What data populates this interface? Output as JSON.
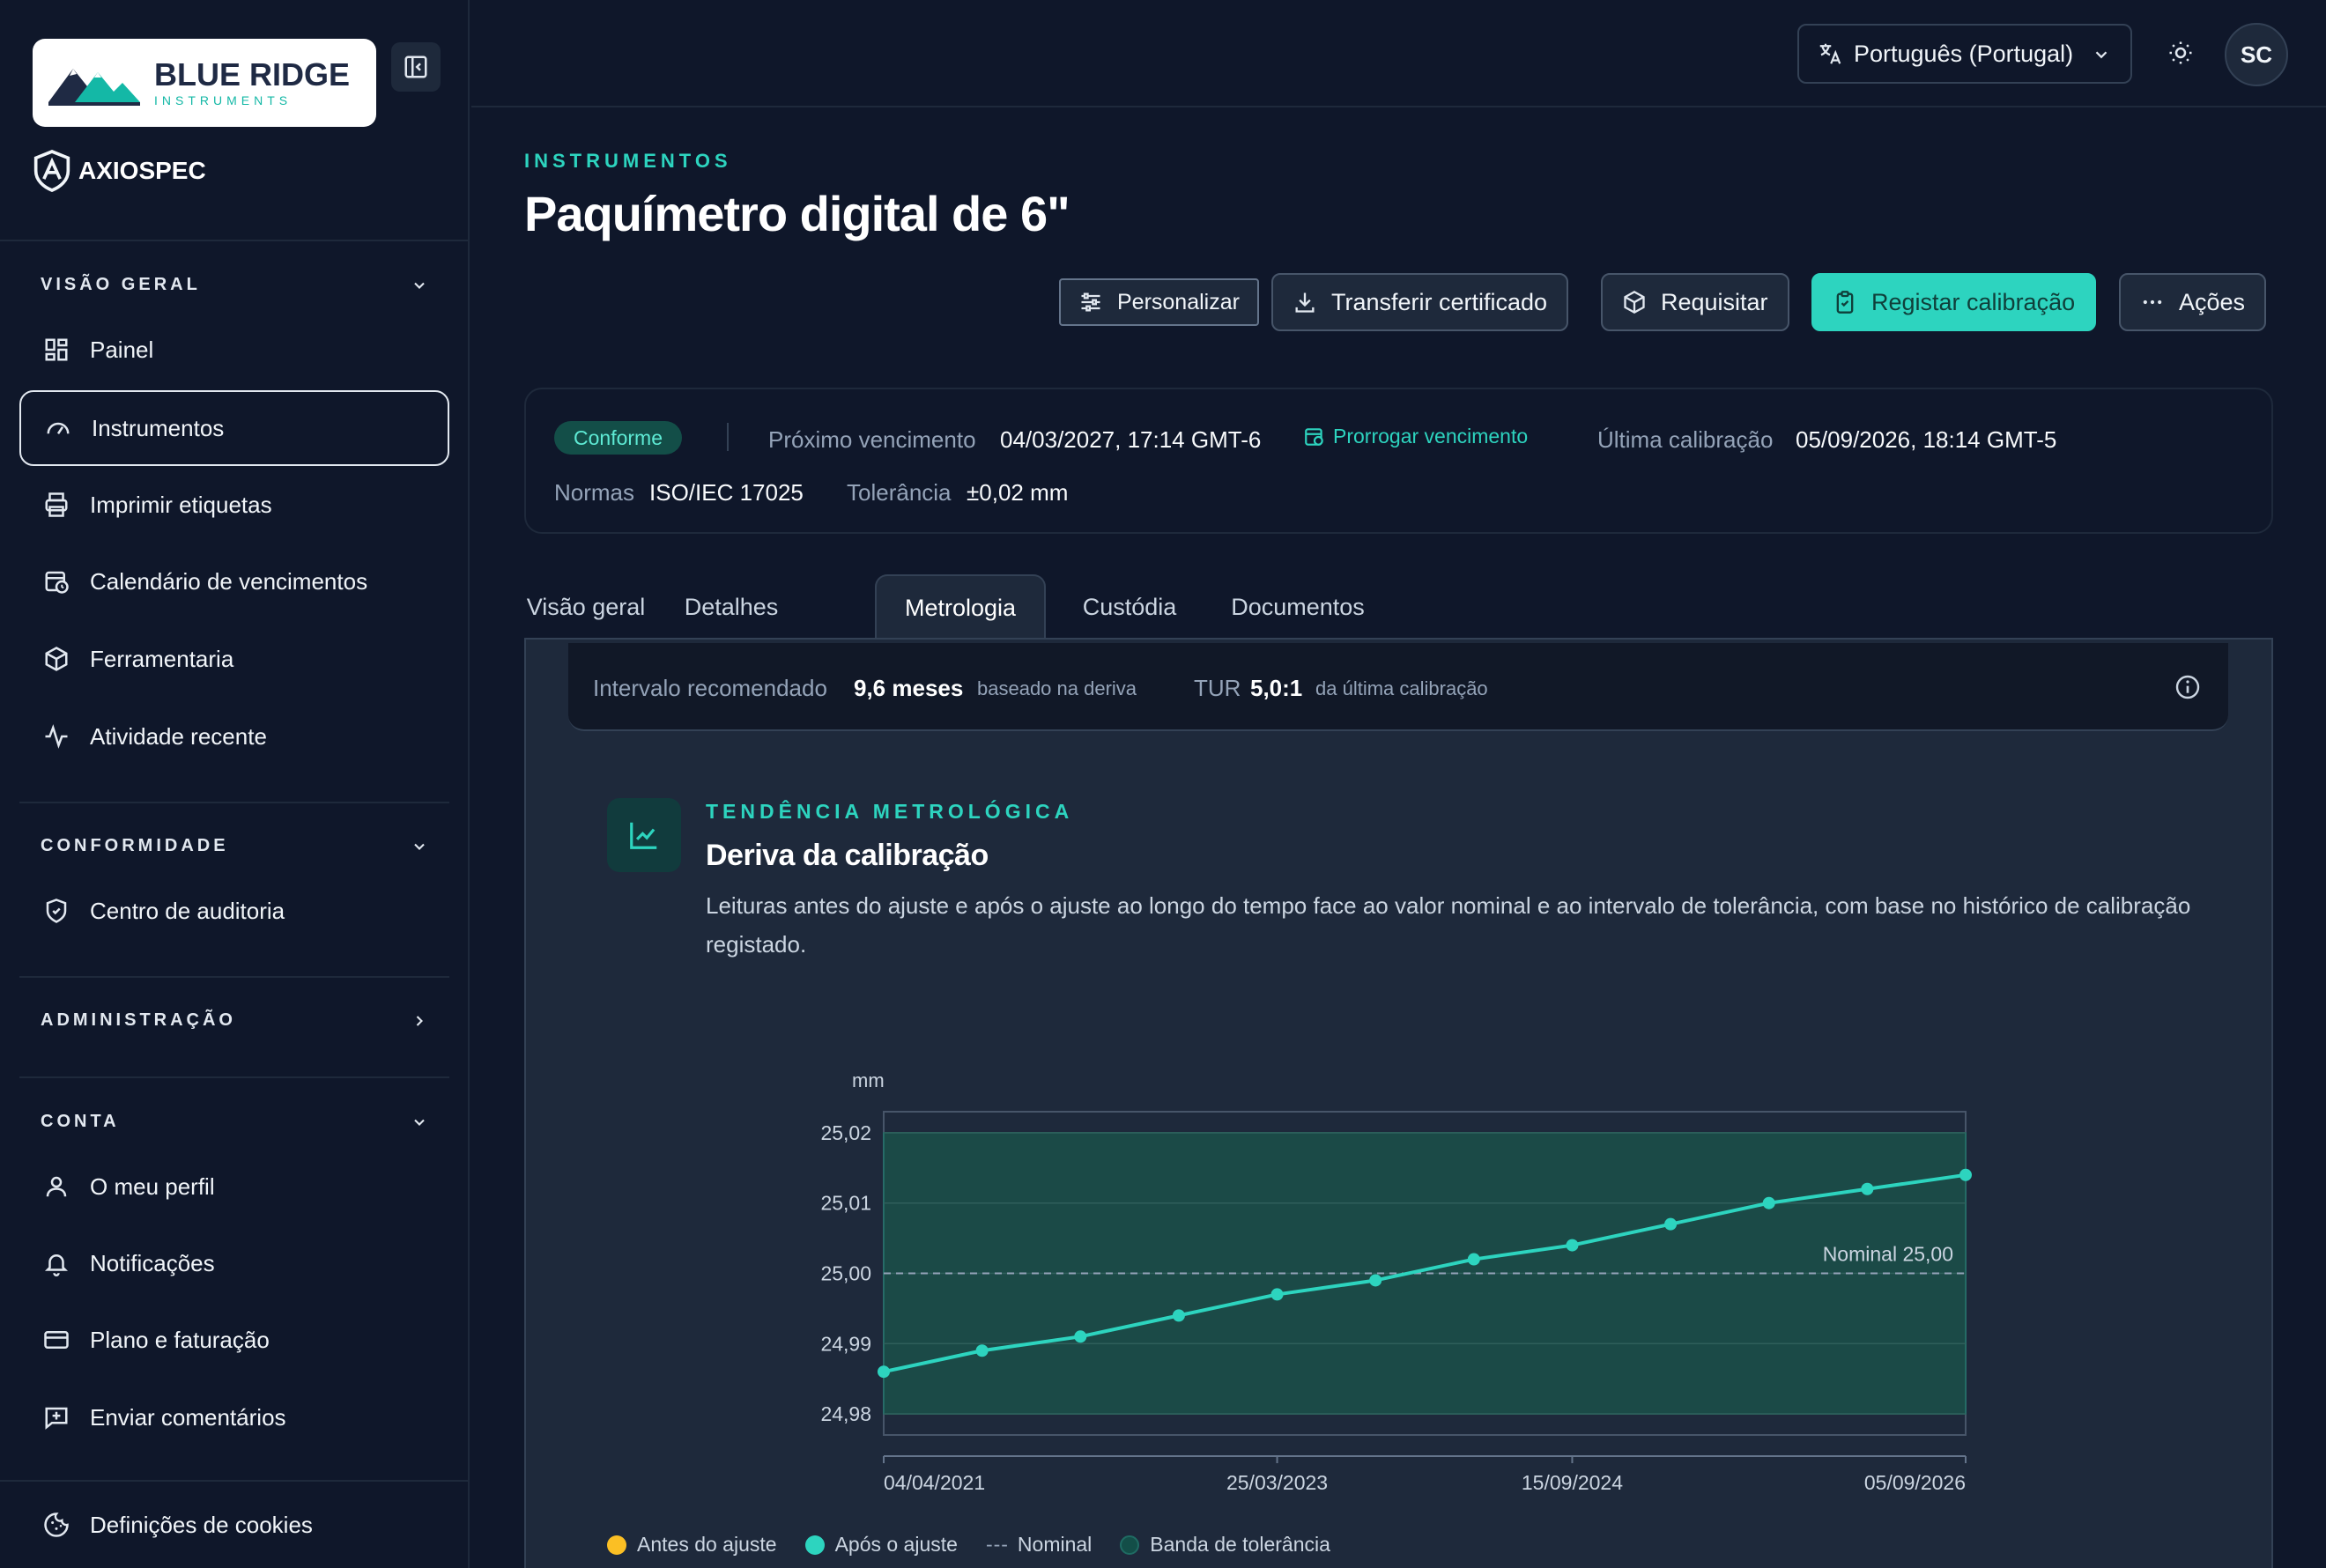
{
  "brand": {
    "name": "BLUE RIDGE",
    "sub": "INSTRUMENTS",
    "product": "AXIOSPEC"
  },
  "sidebar": {
    "sections": [
      {
        "title": "VISÃO GERAL",
        "items": [
          "Painel",
          "Instrumentos",
          "Imprimir etiquetas",
          "Calendário de vencimentos",
          "Ferramentaria",
          "Atividade recente"
        ]
      },
      {
        "title": "CONFORMIDADE",
        "items": [
          "Centro de auditoria"
        ]
      },
      {
        "title": "ADMINISTRAÇÃO",
        "items": []
      },
      {
        "title": "CONTA",
        "items": [
          "O meu perfil",
          "Notificações",
          "Plano e faturação",
          "Enviar comentários"
        ]
      }
    ],
    "footer_item": "Definições de cookies",
    "active_item": "Instrumentos"
  },
  "topbar": {
    "language": "Português (Portugal)",
    "avatar_initials": "SC"
  },
  "page": {
    "breadcrumb": "INSTRUMENTOS",
    "title": "Paquímetro digital de 6\"",
    "actions": {
      "customize": "Personalizar",
      "download": "Transferir certificado",
      "request": "Requisitar",
      "calibrate": "Registar calibração",
      "more": "Ações"
    }
  },
  "summary": {
    "status": "Conforme",
    "next_due_label": "Próximo vencimento",
    "next_due": "04/03/2027, 17:14 GMT-6",
    "extend_link": "Prorrogar vencimento",
    "last_cal_label": "Última calibração",
    "last_cal": "05/09/2026, 18:14 GMT-5",
    "standards_label": "Normas",
    "standards": "ISO/IEC 17025",
    "tolerance_label": "Tolerância",
    "tolerance": "±0,02 mm"
  },
  "tabs": [
    "Visão geral",
    "Detalhes",
    "Metrologia",
    "Custódia",
    "Documentos"
  ],
  "active_tab": "Metrologia",
  "interval": {
    "label": "Intervalo recomendado",
    "value": "9,6 meses",
    "note": "baseado na deriva",
    "tur_label": "TUR",
    "tur_value": "5,0:1",
    "tur_note": "da última calibração"
  },
  "trend": {
    "eyebrow": "TENDÊNCIA METROLÓGICA",
    "title": "Deriva da calibração",
    "description": "Leituras antes do ajuste e após o ajuste ao longo do tempo face ao valor nominal e ao intervalo de tolerância, com base no histórico de calibração registado."
  },
  "chart_data": {
    "type": "line",
    "ylabel": "mm",
    "ylim": [
      24.977,
      25.023
    ],
    "y_ticks": [
      "25,02",
      "25,01",
      "25,00",
      "24,99",
      "24,98"
    ],
    "y_tick_values": [
      25.02,
      25.01,
      25.0,
      24.99,
      24.98
    ],
    "x_tick_labels": [
      "04/04/2021",
      "25/03/2023",
      "15/09/2024",
      "05/09/2026"
    ],
    "x_tick_index": [
      0,
      4,
      7,
      11
    ],
    "nominal": 25.0,
    "nominal_label": "Nominal 25,00",
    "tolerance_band": [
      24.98,
      25.02
    ],
    "series": [
      {
        "name": "Após o ajuste",
        "color": "#2dd4bf",
        "values": [
          24.986,
          24.989,
          24.991,
          24.994,
          24.997,
          24.999,
          25.002,
          25.004,
          25.007,
          25.01,
          25.012,
          25.014
        ]
      }
    ],
    "legend": [
      "Antes do ajuste",
      "Após o ajuste",
      "Nominal",
      "Banda de tolerância"
    ],
    "legend_colors": [
      "#fbbf24",
      "#2dd4bf",
      "#94a3b8",
      "#134e48"
    ]
  }
}
